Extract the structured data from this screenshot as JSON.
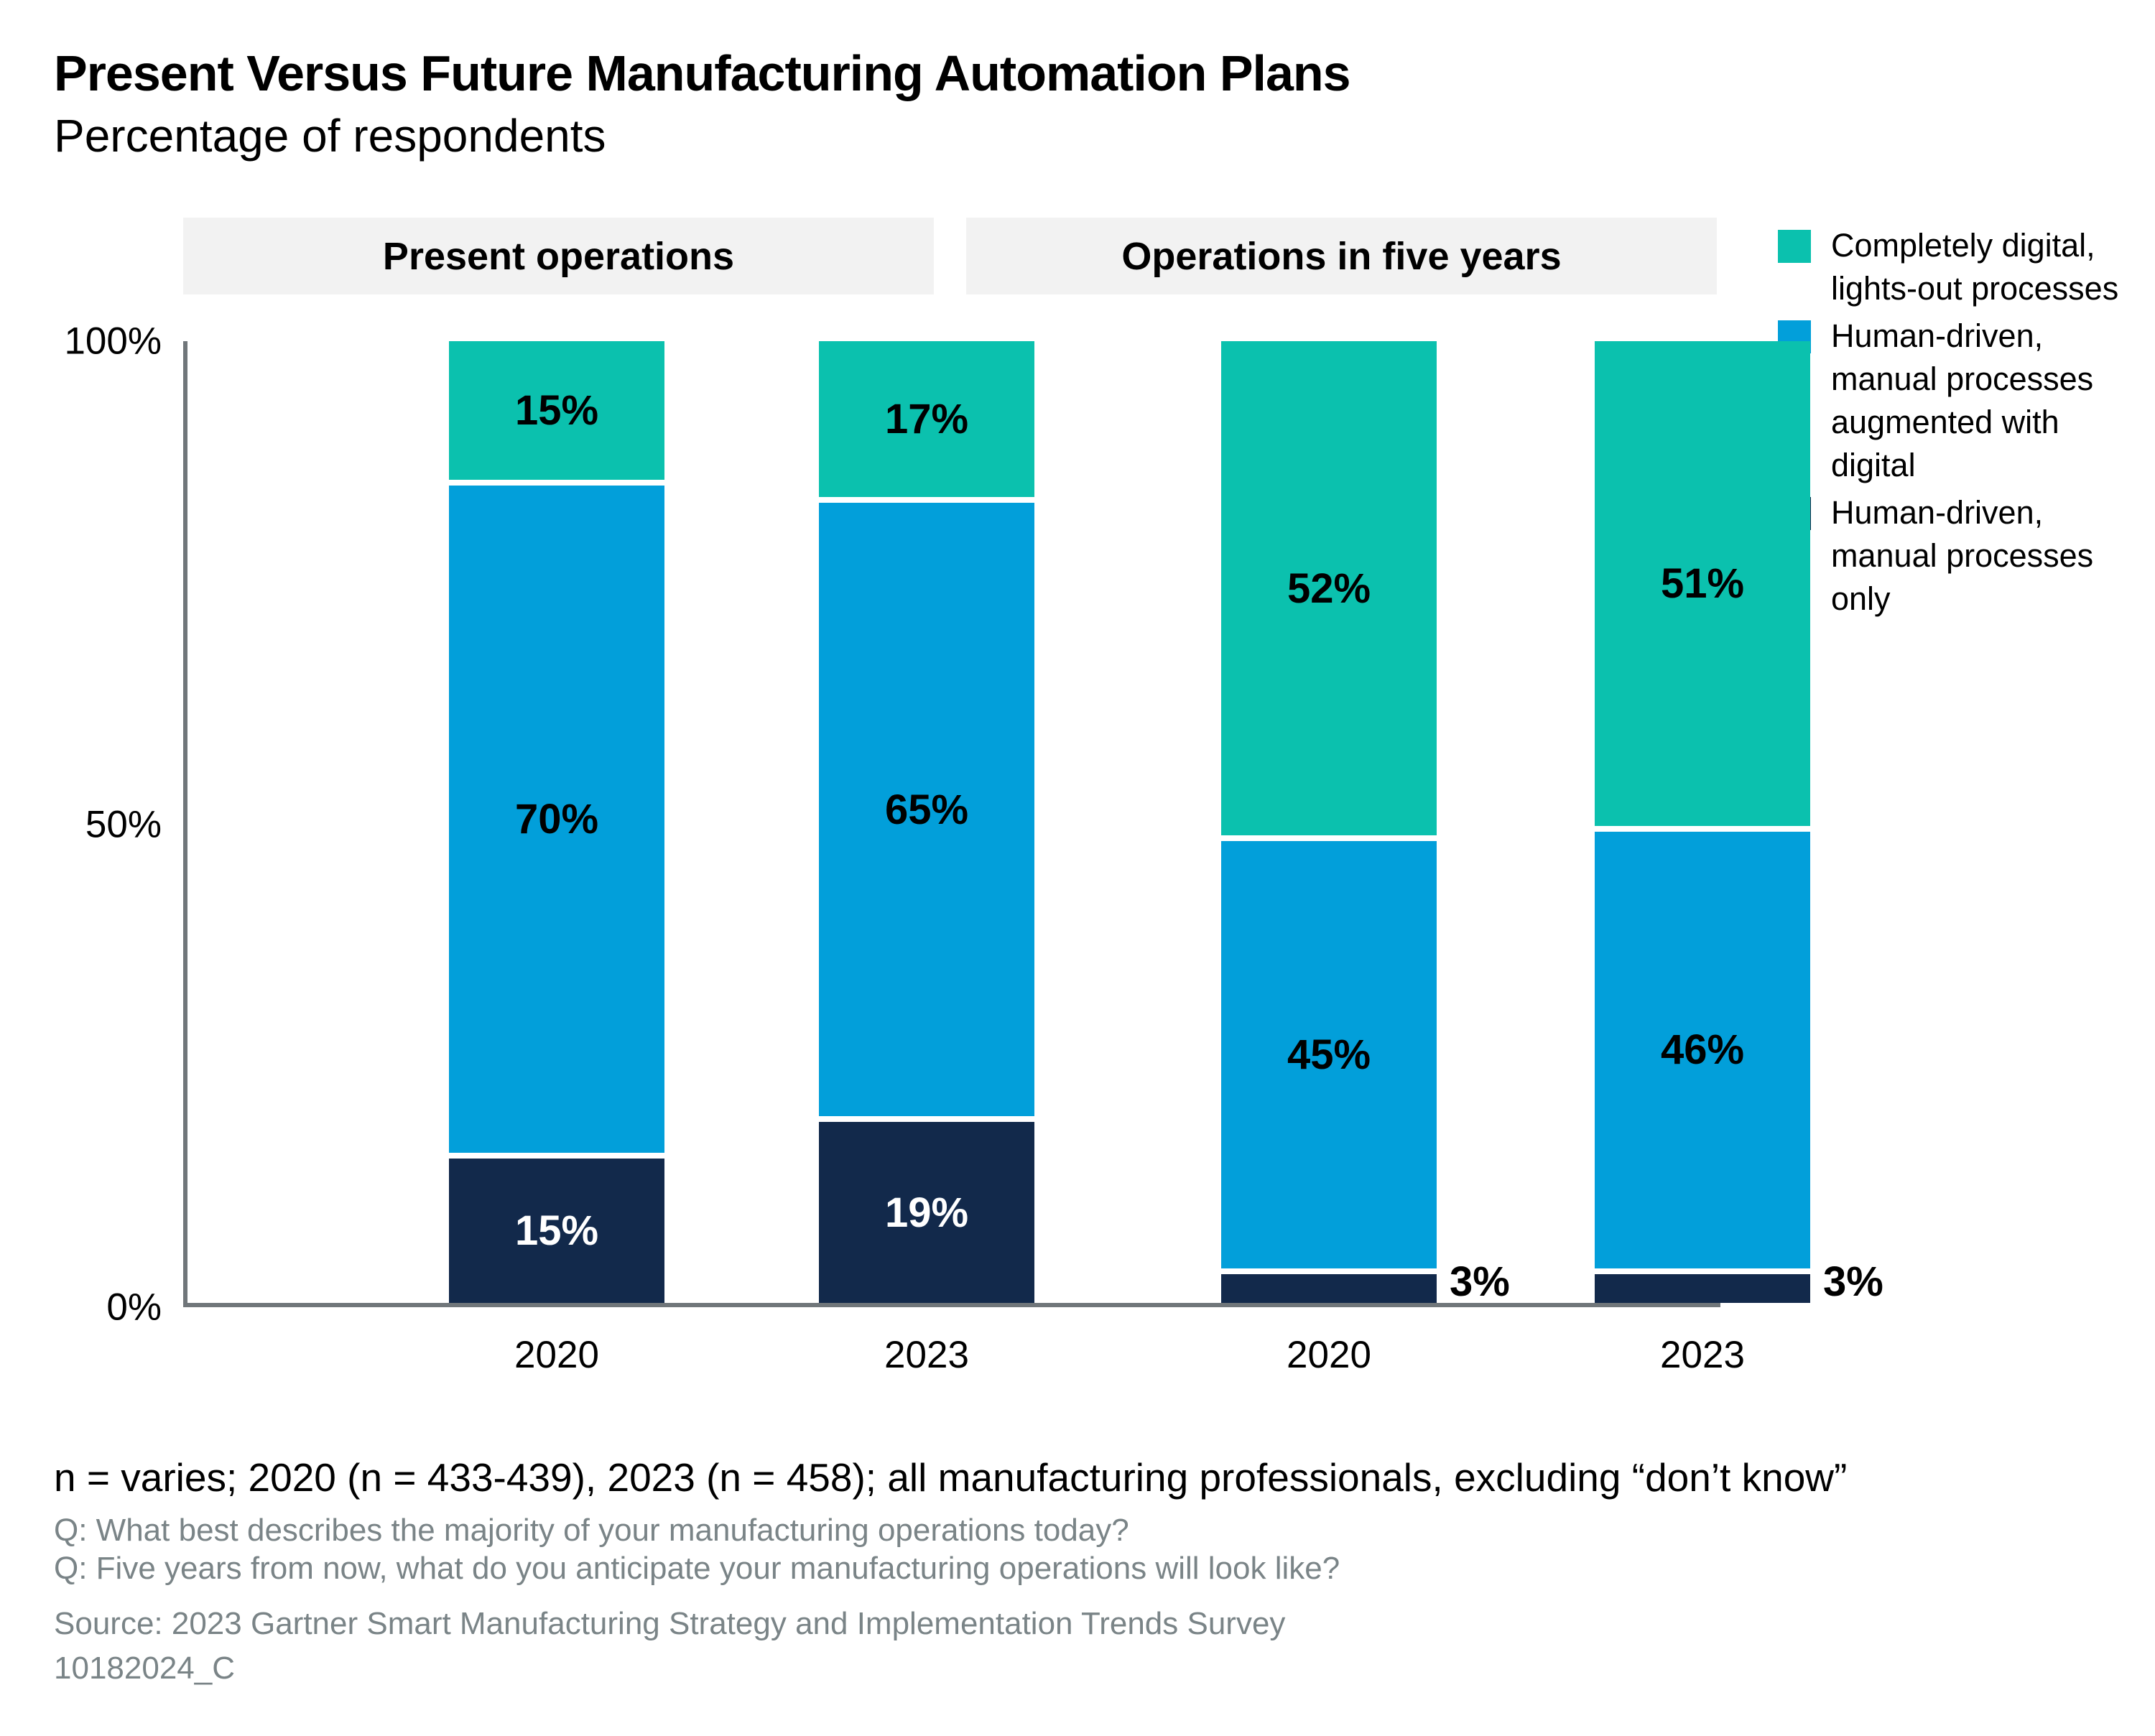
{
  "header": {
    "title": "Present Versus Future Manufacturing Automation Plans",
    "subtitle": "Percentage of respondents"
  },
  "chart_data": {
    "type": "bar",
    "stacked": true,
    "value_unit": "%",
    "title": "Present Versus Future Manufacturing Automation Plans",
    "subtitle": "Percentage of respondents",
    "group_headers": [
      "Present operations",
      "Operations in five years"
    ],
    "categories": [
      "2020",
      "2023",
      "2020",
      "2023"
    ],
    "category_groups": [
      "Present operations",
      "Present operations",
      "Operations in five years",
      "Operations in five years"
    ],
    "series": [
      {
        "name": "Completely digital, lights-out processes",
        "color": "#0BC1AE",
        "values": [
          15,
          17,
          52,
          51
        ]
      },
      {
        "name": "Human-driven, manual processes augmented with digital",
        "color": "#029FDA",
        "values": [
          70,
          65,
          45,
          46
        ]
      },
      {
        "name": "Human-driven, manual processes only",
        "color": "#12294B",
        "label_color": "#ffffff",
        "values": [
          15,
          19,
          3,
          3
        ]
      }
    ],
    "yticks": [
      "100%",
      "50%",
      "0%"
    ],
    "ylim": [
      0,
      100
    ],
    "grid": false,
    "legend_position": "top-right"
  },
  "footnotes": {
    "sample_note": "n = varies; 2020 (n = 433-439), 2023 (n = 458); all manufacturing professionals, excluding “don’t know”",
    "question1": "Q: What best describes the majority of your manufacturing operations today?",
    "question2": "Q: Five years from now, what do you anticipate your manufacturing operations will look like?",
    "source": "Source: 2023 Gartner Smart Manufacturing Strategy and Implementation Trends Survey",
    "document_id": "10182024_C"
  },
  "colors": {
    "band_background": "#F2F2F2",
    "axis_line": "#70767A",
    "muted_text": "#7A8487"
  }
}
